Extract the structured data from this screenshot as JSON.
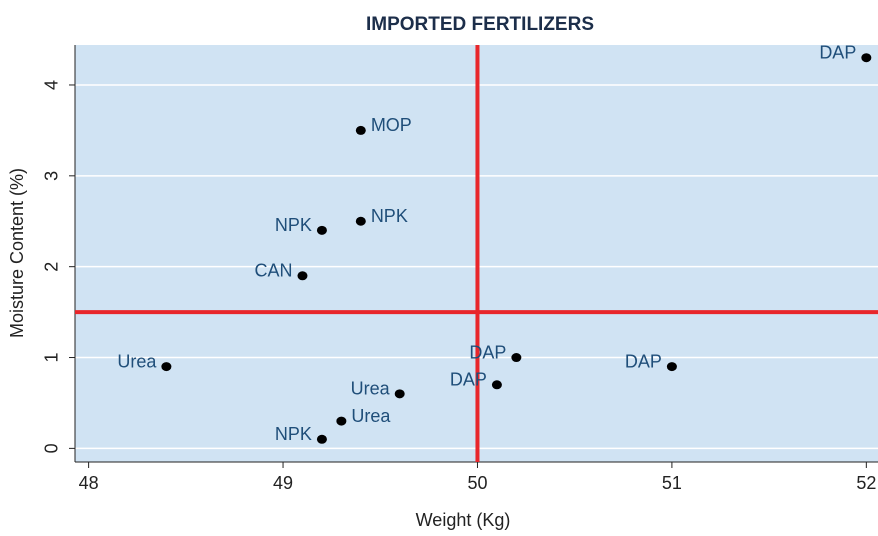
{
  "chart_data": {
    "type": "scatter",
    "title": "IMPORTED FERTILIZERS",
    "xlabel": "Weight (Kg)",
    "ylabel": "Moisture Content (%)",
    "x": [
      52,
      49.4,
      49.4,
      49.2,
      49.1,
      48.4,
      50.2,
      51.0,
      49.6,
      50.1,
      49.3,
      49.2
    ],
    "y": [
      4.3,
      3.5,
      2.5,
      2.4,
      1.9,
      0.9,
      1.0,
      0.9,
      0.6,
      0.7,
      0.3,
      0.1
    ],
    "point_labels": [
      "DAP",
      "MOP",
      "NPK",
      "NPK",
      "CAN",
      "Urea",
      "DAP",
      "DAP",
      "Urea",
      "DAP",
      "Urea",
      "NPK"
    ],
    "label_positions": [
      "left",
      "right",
      "right",
      "left",
      "left",
      "left",
      "left",
      "left",
      "left",
      "left",
      "right",
      "left"
    ],
    "color": "#000000",
    "label_color": "#1f4e79",
    "plot_background": "#d0e3f3",
    "xlim": [
      47.93,
      52.06
    ],
    "ylim": [
      -0.15,
      4.44
    ],
    "xticks": [
      48,
      49,
      50,
      51,
      52
    ],
    "yticks": [
      0,
      1,
      2,
      3,
      4
    ],
    "grid": true,
    "reference_lines": {
      "x": 50,
      "y": 1.5,
      "color": "#e8262b"
    }
  }
}
